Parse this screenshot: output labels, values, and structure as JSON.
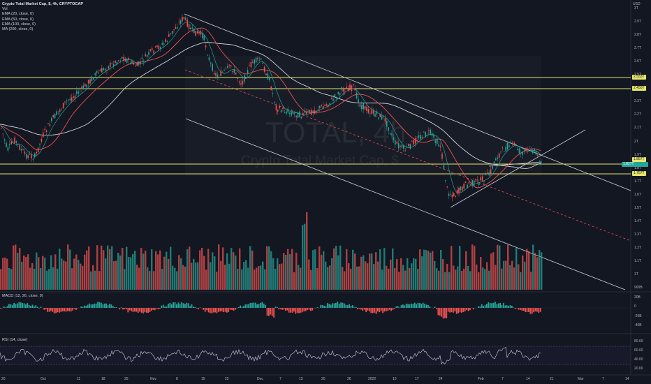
{
  "legend": {
    "title": "Crypto Total Market Cap, $, 4h, CRYPTOCAP",
    "vol": "Vol",
    "ema20": "EMA (20, close, 0)",
    "ema50": "EMA (50, close, 0)",
    "ema100": "EMA (100, close, 0)",
    "ma200": "MA (200, close, 0)"
  },
  "watermark": {
    "symbol": "TOTAL, 4h",
    "name": "Crypto Total Market Cap, $"
  },
  "currency": "USD",
  "price_axis": {
    "labels": [
      "3T",
      "2.9T",
      "2.8T",
      "2.7T",
      "2.6T",
      "2.5T",
      "2.4T",
      "2.3T",
      "2.2T",
      "2.1T",
      "2T",
      "1.9T",
      "1.8T",
      "1.7T",
      "1.6T",
      "1.5T",
      "1.4T",
      "1.3T",
      "1.2T",
      "1.1T",
      "1T",
      "900B"
    ]
  },
  "price_tags": {
    "level_high": "2.553T",
    "level_2": "2.450T",
    "level_3": "1.857T",
    "current": "1.827T",
    "level_low": "1.757T"
  },
  "macd": {
    "title": "MACD (12, 26, close, 9)",
    "labels": [
      "20B",
      "0",
      "-20B",
      "-40B"
    ]
  },
  "rsi": {
    "title": "RSI (14, close)",
    "labels": [
      "80.00",
      "60.00",
      "40.00",
      "20.00"
    ]
  },
  "time_axis": [
    "20",
    "Oct",
    "11",
    "18",
    "25",
    "Nov",
    "8",
    "15",
    "22",
    "Dec",
    "7",
    "13",
    "20",
    "26",
    "2022",
    "10",
    "17",
    "24",
    "Feb",
    "7",
    "14",
    "21",
    "Mar",
    "7",
    "14"
  ],
  "colors": {
    "background": "#131722",
    "up": "#26a69a",
    "down": "#ef5350",
    "level_line": "#e6e66b",
    "channel": "#d1d4dc",
    "ema20": "#26a69a",
    "ema50": "#ef5350",
    "ma200": "#d1d4dc",
    "macd_up": "#26a69a",
    "macd_down": "#ef5350"
  }
}
